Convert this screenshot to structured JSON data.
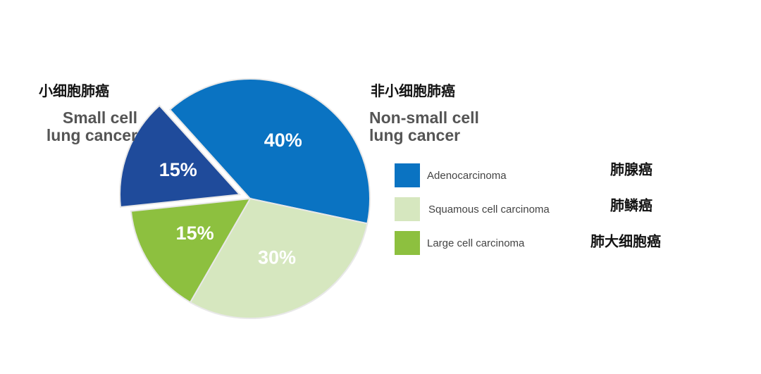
{
  "chart_data": {
    "type": "pie",
    "categories": [
      "Adenocarcinoma",
      "Squamous cell carcinoma",
      "Large cell carcinoma",
      "Small cell lung cancer"
    ],
    "categories_zh": [
      "肺腺癌",
      "肺鳞癌",
      "肺大细胞癌",
      "小细胞肺癌"
    ],
    "values": [
      40,
      30,
      15,
      15
    ],
    "value_labels": [
      "40%",
      "30%",
      "15%",
      "15%"
    ],
    "colors": [
      "#0a73c2",
      "#d6e7bf",
      "#8dc03f",
      "#1f4b9b"
    ],
    "exploded": [
      false,
      false,
      false,
      true
    ],
    "legend": [
      0,
      1,
      2
    ],
    "group_label": "Non-small cell lung cancer",
    "group_label_zh": "非小细胞肺癌"
  }
}
